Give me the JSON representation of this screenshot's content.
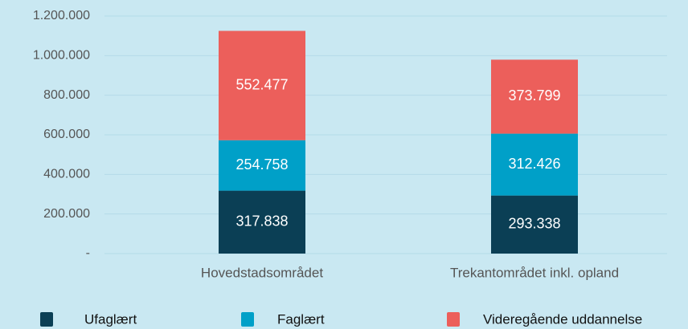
{
  "chart_data": {
    "type": "stacked_bar",
    "categories": [
      "Hovedstadsområdet",
      "Trekantområdet inkl. opland"
    ],
    "series": [
      {
        "name": "Ufaglært",
        "color": "#0b3f55",
        "values": [
          317838,
          293338
        ],
        "value_labels": [
          "317.838",
          "293.338"
        ]
      },
      {
        "name": "Faglært",
        "color": "#00a0c8",
        "values": [
          254758,
          312426
        ],
        "value_labels": [
          "254.758",
          "312.426"
        ]
      },
      {
        "name": "Videregående uddannelse",
        "color": "#ec5f5b",
        "values": [
          552477,
          373799
        ],
        "value_labels": [
          "552.477",
          "373.799"
        ]
      }
    ],
    "ylim": [
      0,
      1200000
    ],
    "yticks": [
      {
        "value": 0,
        "label": "-"
      },
      {
        "value": 200000,
        "label": "200.000"
      },
      {
        "value": 400000,
        "label": "400.000"
      },
      {
        "value": 600000,
        "label": "600.000"
      },
      {
        "value": 800000,
        "label": "800.000"
      },
      {
        "value": 1000000,
        "label": "1.000.000"
      },
      {
        "value": 1200000,
        "label": "1.200.000"
      }
    ],
    "grid": true,
    "legend": "bottom"
  }
}
